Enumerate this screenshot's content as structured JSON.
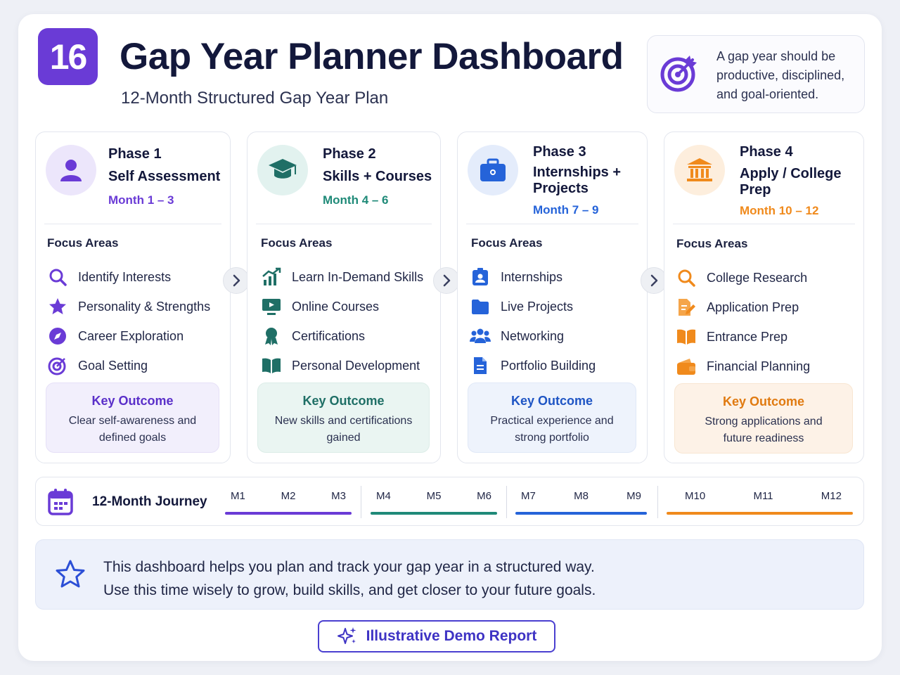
{
  "header": {
    "badge": "16",
    "title": "Gap Year Planner Dashboard",
    "subtitle": "12-Month Structured Gap Year Plan",
    "quote": "A gap year should be productive, disciplined, and goal-oriented."
  },
  "phases": [
    {
      "label": "Phase 1",
      "name": "Self Assessment",
      "months": "Month 1 – 3",
      "color": "#6a3bd6",
      "focus_title": "Focus Areas",
      "items": [
        {
          "label": "Identify Interests",
          "icon": "search-icon"
        },
        {
          "label": "Personality & Strengths",
          "icon": "star-icon"
        },
        {
          "label": "Career Exploration",
          "icon": "compass-icon"
        },
        {
          "label": "Goal Setting",
          "icon": "target-icon"
        }
      ],
      "outcome_title": "Key Outcome",
      "outcome_text": "Clear self-awareness and defined goals"
    },
    {
      "label": "Phase 2",
      "name": "Skills + Courses",
      "months": "Month 4 – 6",
      "color": "#1f8a78",
      "focus_title": "Focus Areas",
      "items": [
        {
          "label": "Learn In-Demand Skills",
          "icon": "growth-chart-icon"
        },
        {
          "label": "Online Courses",
          "icon": "monitor-icon"
        },
        {
          "label": "Certifications",
          "icon": "award-icon"
        },
        {
          "label": "Personal Development",
          "icon": "book-icon"
        }
      ],
      "outcome_title": "Key Outcome",
      "outcome_text": "New skills and certifications gained"
    },
    {
      "label": "Phase 3",
      "name": "Internships + Projects",
      "months": "Month 7 – 9",
      "color": "#2563d9",
      "focus_title": "Focus Areas",
      "items": [
        {
          "label": "Internships",
          "icon": "id-badge-icon"
        },
        {
          "label": "Live Projects",
          "icon": "folder-icon"
        },
        {
          "label": "Networking",
          "icon": "people-icon"
        },
        {
          "label": "Portfolio Building",
          "icon": "document-icon"
        }
      ],
      "outcome_title": "Key Outcome",
      "outcome_text": "Practical experience and strong portfolio"
    },
    {
      "label": "Phase 4",
      "name": "Apply / College Prep",
      "months": "Month 10 – 12",
      "color": "#f08a1c",
      "focus_title": "Focus Areas",
      "items": [
        {
          "label": "College Research",
          "icon": "search-icon"
        },
        {
          "label": "Application Prep",
          "icon": "edit-document-icon"
        },
        {
          "label": "Entrance Prep",
          "icon": "book-icon"
        },
        {
          "label": "Financial Planning",
          "icon": "wallet-icon"
        }
      ],
      "outcome_title": "Key Outcome",
      "outcome_text": "Strong applications and future readiness"
    }
  ],
  "journey": {
    "label": "12-Month Journey",
    "segments": [
      {
        "months": [
          "M1",
          "M2",
          "M3"
        ],
        "color": "#6a3bd6"
      },
      {
        "months": [
          "M4",
          "M5",
          "M6"
        ],
        "color": "#1f8a78"
      },
      {
        "months": [
          "M7",
          "M8",
          "M9"
        ],
        "color": "#2563d9"
      },
      {
        "months": [
          "M10",
          "M11",
          "M12"
        ],
        "color": "#f08a1c"
      }
    ]
  },
  "banner": {
    "line1": "This dashboard helps you plan and track your gap year in a structured way.",
    "line2": "Use this time wisely to grow, build skills, and get closer to your future goals."
  },
  "demo_button": {
    "label": "Illustrative Demo Report"
  }
}
